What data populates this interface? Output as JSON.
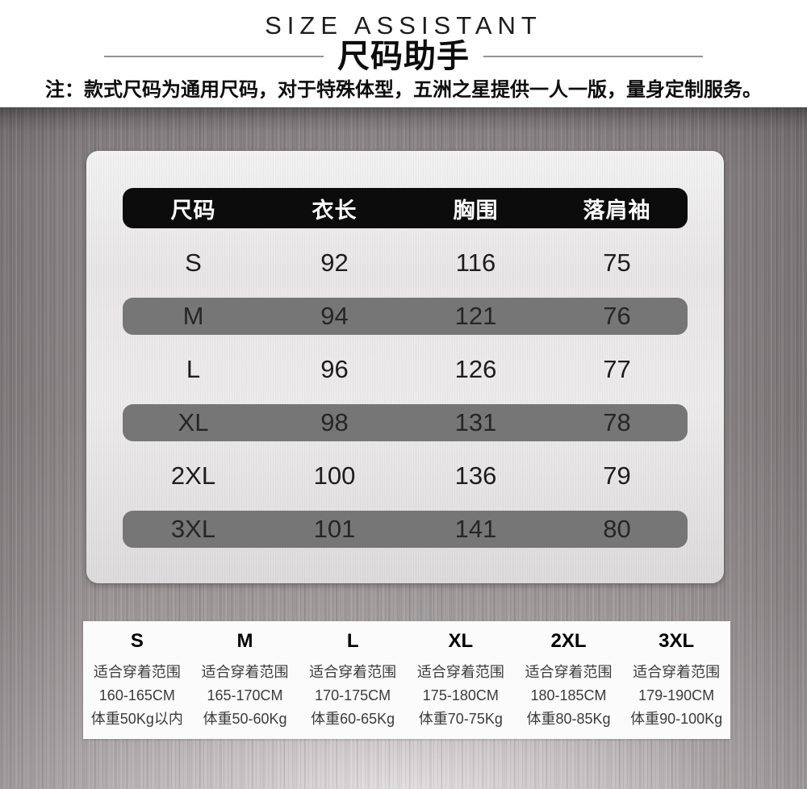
{
  "header": {
    "title_en": "SIZE ASSISTANT",
    "title_zh": "尺码助手",
    "note": "注：款式尺码为通用尺码，对于特殊体型，五洲之星提供一人一版，量身定制服务。"
  },
  "size_table": {
    "columns": [
      "尺码",
      "衣长",
      "胸围",
      "落肩袖"
    ],
    "rows": [
      {
        "size": "S",
        "length": "92",
        "chest": "116",
        "sleeve": "75",
        "highlighted": false
      },
      {
        "size": "M",
        "length": "94",
        "chest": "121",
        "sleeve": "76",
        "highlighted": true
      },
      {
        "size": "L",
        "length": "96",
        "chest": "126",
        "sleeve": "77",
        "highlighted": false
      },
      {
        "size": "XL",
        "length": "98",
        "chest": "131",
        "sleeve": "78",
        "highlighted": true
      },
      {
        "size": "2XL",
        "length": "100",
        "chest": "136",
        "sleeve": "79",
        "highlighted": false
      },
      {
        "size": "3XL",
        "length": "101",
        "chest": "141",
        "sleeve": "80",
        "highlighted": true
      }
    ]
  },
  "fit_guide": {
    "columns": [
      {
        "size": "S",
        "fit_label": "适合穿着范围",
        "height_range": "160-165CM",
        "weight_range": "体重50Kg以内"
      },
      {
        "size": "M",
        "fit_label": "适合穿着范围",
        "height_range": "165-170CM",
        "weight_range": "体重50-60Kg"
      },
      {
        "size": "L",
        "fit_label": "适合穿着范围",
        "height_range": "170-175CM",
        "weight_range": "体重60-65Kg"
      },
      {
        "size": "XL",
        "fit_label": "适合穿着范围",
        "height_range": "175-180CM",
        "weight_range": "体重70-75Kg"
      },
      {
        "size": "2XL",
        "fit_label": "适合穿着范围",
        "height_range": "180-185CM",
        "weight_range": "体重80-85Kg"
      },
      {
        "size": "3XL",
        "fit_label": "适合穿着范围",
        "height_range": "179-190CM",
        "weight_range": "体重90-100Kg"
      }
    ]
  },
  "colors": {
    "table_header_bg": "#0c0c0c",
    "table_header_text": "#ffffff",
    "row_highlight_bg": "#777677",
    "card_bg": "#e9e7e7",
    "metal_bg": "#8e8889",
    "panel_bg": "#fbfbfb"
  }
}
